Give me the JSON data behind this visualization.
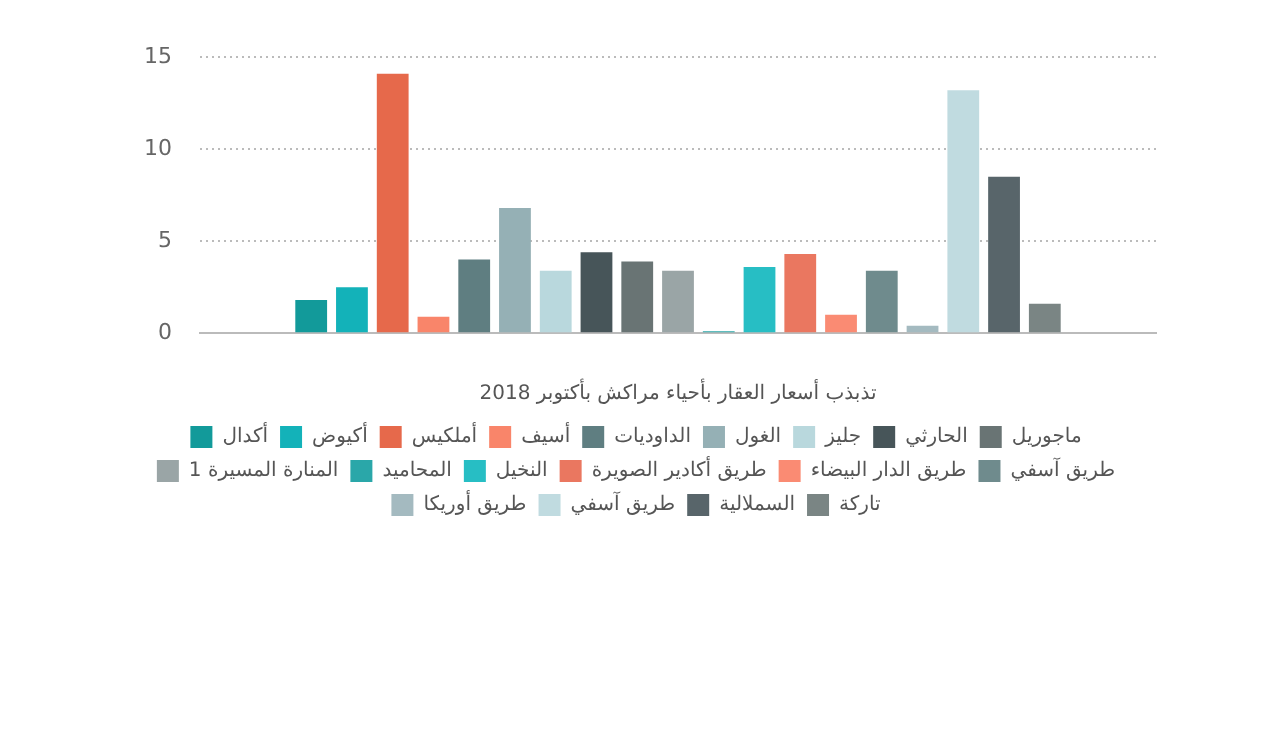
{
  "chart_data": {
    "type": "bar",
    "xlabel": "تذبذب أسعار العقار بأحياء مراكش بأكتوبر 2018",
    "categories": [
      null
    ],
    "series": [
      {
        "name": "أكدال",
        "color": "#129a9a",
        "values": [
          1.8
        ]
      },
      {
        "name": "أكيوض",
        "color": "#13b2b9",
        "values": [
          2.5
        ]
      },
      {
        "name": "أملكيس",
        "color": "#e6694b",
        "values": [
          14.1
        ]
      },
      {
        "name": "أسيف",
        "color": "#f9856a",
        "values": [
          0.9
        ]
      },
      {
        "name": "الداوديات",
        "color": "#5f7e81",
        "values": [
          4.0
        ]
      },
      {
        "name": "الغول",
        "color": "#95b0b5",
        "values": [
          6.8
        ]
      },
      {
        "name": "جليز",
        "color": "#b9d8dd",
        "values": [
          3.4
        ]
      },
      {
        "name": "الحارثي",
        "color": "#475559",
        "values": [
          4.4
        ]
      },
      {
        "name": "ماجوريل",
        "color": "#697474",
        "values": [
          3.9
        ]
      },
      {
        "name": "المنارة المسيرة 1",
        "color": "#9aa5a6",
        "values": [
          3.4
        ]
      },
      {
        "name": "المحاميد",
        "color": "#2aa7a9",
        "values": [
          0.1
        ]
      },
      {
        "name": "النخيل",
        "color": "#27bec4",
        "values": [
          3.6
        ]
      },
      {
        "name": "طريق أكادير الصويرة",
        "color": "#ea7760",
        "values": [
          4.3
        ]
      },
      {
        "name": "طريق الدار البيضاء",
        "color": "#fa8b73",
        "values": [
          1.0
        ]
      },
      {
        "name": "طريق آسفي",
        "color": "#6f8b8d",
        "values": [
          3.4
        ]
      },
      {
        "name": "طريق أوريكا",
        "color": "#a4bac0",
        "values": [
          0.4
        ]
      },
      {
        "name": "طريق آسفي",
        "color": "#c0dbe0",
        "values": [
          13.2
        ]
      },
      {
        "name": "السملالية",
        "color": "#58656a",
        "values": [
          8.5
        ]
      },
      {
        "name": "تاركة",
        "color": "#7a8584",
        "values": [
          1.6
        ]
      }
    ],
    "ylim": [
      0,
      15
    ],
    "yticks": [
      0,
      5,
      10,
      15
    ],
    "grid": "y",
    "legend": "bottom"
  }
}
